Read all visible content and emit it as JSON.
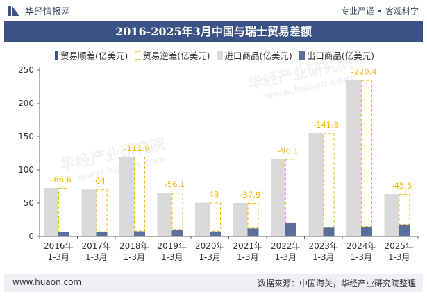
{
  "header": {
    "brand": "华经情报网",
    "tagline_left": "专业严谨",
    "tagline_right": "客观科学"
  },
  "watermarks": [
    "华经产业研究院",
    "www.huaon.com",
    "华经产业研究院",
    "www.huaon.com"
  ],
  "footer": {
    "website": "www.huaon.com",
    "source": "数据来源：中国海关，华经产业研究院整理"
  },
  "colors": {
    "title_bg": "#3b5287",
    "import": "#d9d9d9",
    "export": "#5b6e99",
    "deficit_border": "#f5b800",
    "label": "#f5b800",
    "axis": "#666666"
  },
  "chart_data": {
    "type": "bar",
    "title": "2016-2025年3月中国与瑞士贸易差额",
    "legend": [
      "贸易顺差(亿美元)",
      "贸易逆差(亿美元)",
      "进口商品(亿美元)",
      "出口商品(亿美元)"
    ],
    "categories": [
      [
        "2016年",
        "1-3月"
      ],
      [
        "2017年",
        "1-3月"
      ],
      [
        "2018年",
        "1-3月"
      ],
      [
        "2019年",
        "1-3月"
      ],
      [
        "2020年",
        "1-3月"
      ],
      [
        "2021年",
        "1-3月"
      ],
      [
        "2022年",
        "1-3月"
      ],
      [
        "2023年",
        "1-3月"
      ],
      [
        "2024年",
        "1-3月"
      ],
      [
        "2025年",
        "1-3月"
      ]
    ],
    "series": [
      {
        "name": "进口商品(亿美元)",
        "values": [
          72.9,
          70.6,
          119.6,
          65.4,
          50.5,
          50.0,
          116.2,
          155.0,
          234.8,
          63.4
        ]
      },
      {
        "name": "出口商品(亿美元)",
        "values": [
          6.3,
          6.6,
          7.7,
          9.3,
          7.5,
          12.1,
          20.1,
          13.2,
          14.4,
          17.9
        ]
      },
      {
        "name": "贸易逆差(亿美元)",
        "values": [
          -66.6,
          -64,
          -111.9,
          -56.1,
          -43,
          -37.9,
          -96.1,
          -141.8,
          -220.4,
          -45.5
        ]
      }
    ],
    "data_labels": [
      "-66.6",
      "-64",
      "-111.9",
      "-56.1",
      "-43",
      "-37.9",
      "-96.1",
      "-141.8",
      "-220.4",
      "-45.5"
    ],
    "yticks": [
      "0",
      "50",
      "100",
      "150",
      "200",
      "250"
    ],
    "ylim": [
      0,
      250
    ],
    "grid": false
  }
}
